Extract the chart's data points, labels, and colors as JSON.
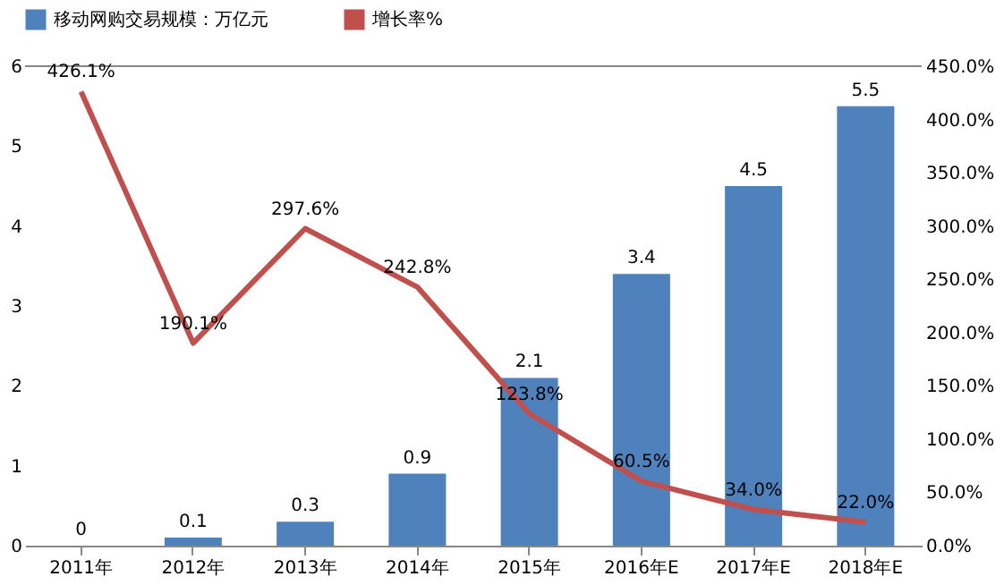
{
  "chart_data": {
    "type": "bar",
    "categories": [
      "2011年",
      "2012年",
      "2013年",
      "2014年",
      "2015年",
      "2016年E",
      "2017年E",
      "2018年E"
    ],
    "series": [
      {
        "name": "移动网购交易规模：万亿元",
        "type": "bar",
        "color": "#4f81bd",
        "values": [
          0,
          0.1,
          0.3,
          0.9,
          2.1,
          3.4,
          4.5,
          5.5
        ],
        "value_labels": [
          "0",
          "0.1",
          "0.3",
          "0.9",
          "2.1",
          "3.4",
          "4.5",
          "5.5"
        ]
      },
      {
        "name": "增长率%",
        "type": "line",
        "axis": "y2",
        "color": "#c0504d",
        "values": [
          426.1,
          190.1,
          297.6,
          242.8,
          123.8,
          60.5,
          34.0,
          22.0
        ],
        "value_labels": [
          "426.1%",
          "190.1%",
          "297.6%",
          "242.8%",
          "123.8%",
          "60.5%",
          "34.0%",
          "22.0%"
        ]
      }
    ],
    "ylim": [
      0,
      6
    ],
    "yticks": [
      0,
      1,
      2,
      3,
      4,
      5,
      6
    ],
    "y2lim": [
      0,
      450
    ],
    "y2ticks": [
      {
        "value": 0,
        "label": "0.0%"
      },
      {
        "value": 50,
        "label": "50.0%"
      },
      {
        "value": 100,
        "label": "100.0%"
      },
      {
        "value": 150,
        "label": "150.0%"
      },
      {
        "value": 200,
        "label": "200.0%"
      },
      {
        "value": 250,
        "label": "250.0%"
      },
      {
        "value": 300,
        "label": "300.0%"
      },
      {
        "value": 350,
        "label": "350.0%"
      },
      {
        "value": 400,
        "label": "400.0%"
      },
      {
        "value": 450,
        "label": "450.0%"
      }
    ],
    "legend": "top",
    "grid": false,
    "marker": "none",
    "line_style": "solid"
  }
}
